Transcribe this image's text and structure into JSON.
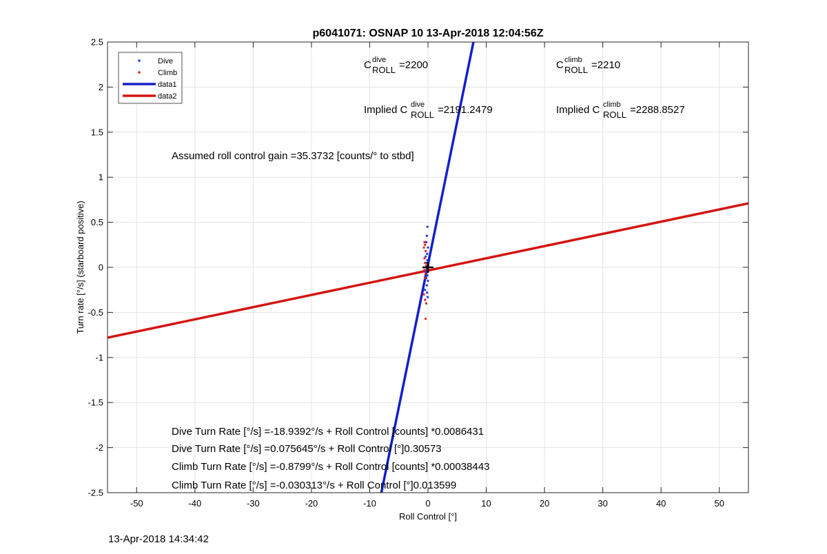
{
  "chart_data": {
    "type": "scatter",
    "title": "p6041071: OSNAP 10 13-Apr-2018 12:04:56Z",
    "xlabel": "Roll Control [°]",
    "ylabel": "Turn rate [°/s] (starboard positive)",
    "xlim": [
      -55,
      55
    ],
    "ylim": [
      -2.5,
      2.5
    ],
    "x_ticks": [
      -50,
      -40,
      -30,
      -20,
      -10,
      0,
      10,
      20,
      30,
      40,
      50
    ],
    "x_tick_labels": [
      "-50",
      "-40",
      "-30",
      "-20",
      "-10",
      "0",
      "10",
      "20",
      "30",
      "40",
      "50"
    ],
    "y_ticks": [
      2.5,
      2,
      1.5,
      1,
      0.5,
      0,
      -0.5,
      -1,
      -1.5,
      -2,
      -2.5
    ],
    "y_tick_labels": [
      "2.5",
      "2",
      "1.5",
      "1",
      "0.5",
      "0",
      "-0.5",
      "-1",
      "-1.5",
      "-2",
      "-2.5"
    ],
    "grid": true,
    "legend_position": "top-left",
    "series": [
      {
        "name": "Dive",
        "style": "points",
        "color": "#1f3bdc",
        "points": [
          [
            -0.1,
            0.45
          ],
          [
            -0.2,
            0.35
          ],
          [
            -0.3,
            0.28
          ],
          [
            0.0,
            0.22
          ],
          [
            -0.15,
            0.15
          ],
          [
            -0.4,
            0.12
          ],
          [
            -0.1,
            0.08
          ],
          [
            -0.25,
            0.05
          ],
          [
            0.05,
            0.02
          ],
          [
            -0.2,
            -0.02
          ],
          [
            -0.35,
            -0.05
          ],
          [
            -0.1,
            -0.09
          ],
          [
            -0.3,
            -0.12
          ],
          [
            0.0,
            -0.15
          ],
          [
            -0.2,
            -0.2
          ],
          [
            -0.5,
            -0.25
          ],
          [
            -0.15,
            -0.28
          ],
          [
            -0.05,
            -0.33
          ]
        ]
      },
      {
        "name": "Climb",
        "style": "points",
        "color": "#e8201a",
        "points": [
          [
            -0.6,
            0.28
          ],
          [
            -0.5,
            0.25
          ],
          [
            -0.7,
            0.22
          ],
          [
            -0.4,
            0.18
          ],
          [
            -0.6,
            0.1
          ],
          [
            -0.5,
            0.05
          ],
          [
            -0.3,
            0.02
          ],
          [
            -0.6,
            -0.03
          ],
          [
            -0.4,
            -0.07
          ],
          [
            -0.55,
            -0.12
          ],
          [
            -0.7,
            -0.3
          ],
          [
            -0.5,
            -0.36
          ],
          [
            -0.3,
            -0.4
          ],
          [
            -0.4,
            -0.57
          ]
        ]
      },
      {
        "name": "data1",
        "style": "line",
        "color": "#1220c8",
        "x": [
          -8.0,
          7.8
        ],
        "y": [
          -2.5,
          2.5
        ]
      },
      {
        "name": "data2",
        "style": "line",
        "color": "#d41512",
        "x": [
          -55,
          55
        ],
        "y": [
          -0.78,
          0.71
        ]
      }
    ],
    "center_marker": {
      "x": 0,
      "y": 0,
      "symbol": "+",
      "color": "#000000"
    },
    "annotations": {
      "c_dive": {
        "base": "C",
        "sup": "dive",
        "sub": "ROLL",
        "value": "=2200"
      },
      "c_climb": {
        "base": "C",
        "sup": "climb",
        "sub": "ROLL",
        "value": "=2210"
      },
      "implied_dive": {
        "prefix": "Implied C",
        "sup": "dive",
        "sub": "ROLL",
        "value": "=2191.2479"
      },
      "implied_climb": {
        "prefix": "Implied C",
        "sup": "climb",
        "sub": "ROLL",
        "value": "=2288.8527"
      },
      "gain": "Assumed roll control gain =35.3732 [counts/° to stbd]",
      "fits": [
        "Dive Turn Rate [°/s] =-18.9392°/s + Roll Control [counts] *0.0086431",
        "Dive Turn Rate [°/s] =0.075645°/s + Roll Control [°]0.30573",
        "Climb Turn Rate [°/s] =-0.8799°/s + Roll Control [counts] *0.00038443",
        "Climb Turn Rate [°/s] =-0.030313°/s + Roll Control [°]0.013599"
      ]
    }
  },
  "footer": {
    "timestamp": "13-Apr-2018 14:34:42"
  }
}
